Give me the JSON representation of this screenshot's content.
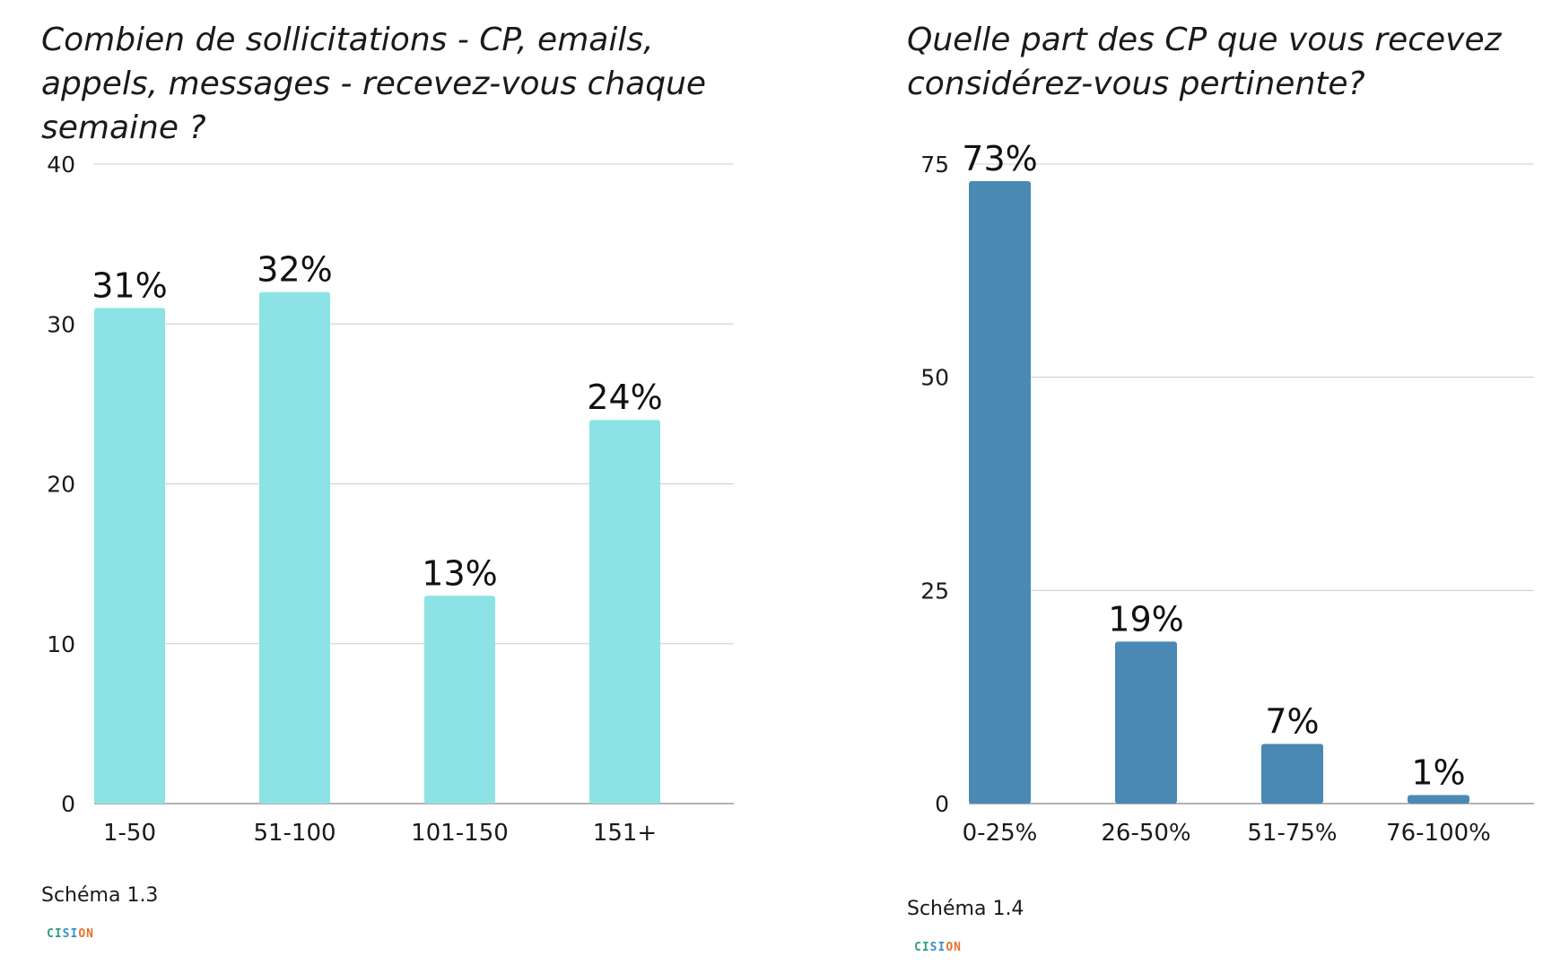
{
  "chart_data": [
    {
      "type": "bar",
      "title": "Combien de sollicitations - CP, emails, appels, messages - recevez-vous chaque semaine ?",
      "categories": [
        "1-50",
        "51-100",
        "101-150",
        "151+"
      ],
      "values": [
        31,
        32,
        13,
        24
      ],
      "data_labels": [
        "31%",
        "32%",
        "13%",
        "24%"
      ],
      "ylim": [
        0,
        40
      ],
      "yticks": [
        0,
        10,
        20,
        30,
        40
      ],
      "grid": true,
      "color": "#8de2e6",
      "caption": "Schéma 1.3"
    },
    {
      "type": "bar",
      "title": "Quelle part des CP que vous recevez considérez-vous pertinente?",
      "categories": [
        "0-25%",
        "26-50%",
        "51-75%",
        "76-100%"
      ],
      "values": [
        73,
        19,
        7,
        1
      ],
      "data_labels": [
        "73%",
        "19%",
        "7%",
        "1%"
      ],
      "ylim": [
        0,
        75
      ],
      "yticks": [
        0,
        25,
        50,
        75
      ],
      "grid": true,
      "color": "#4a89b4",
      "caption": "Schéma 1.4"
    }
  ],
  "logo": {
    "text": "CISION",
    "colors": [
      "#2e9e7e",
      "#3a8fc8",
      "#e8702a"
    ]
  }
}
